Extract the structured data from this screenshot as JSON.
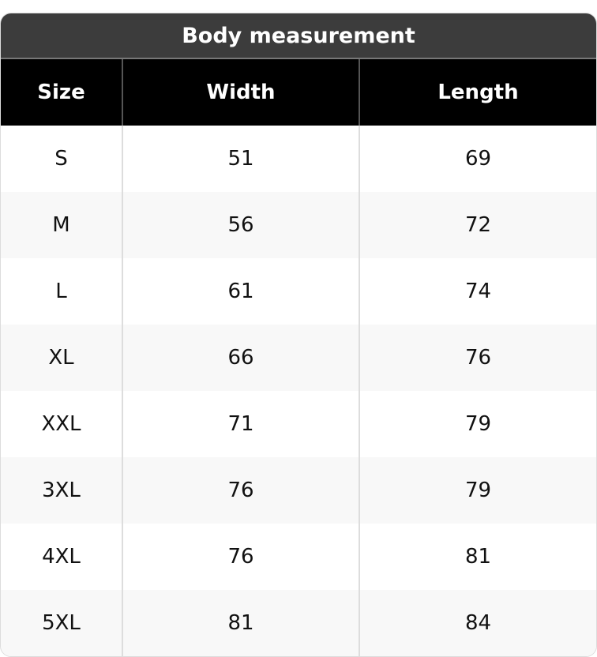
{
  "title": "Body measurement",
  "columns": [
    "Size",
    "Width",
    "Length"
  ],
  "rows": [
    [
      "S",
      "51",
      "69"
    ],
    [
      "M",
      "56",
      "72"
    ],
    [
      "L",
      "61",
      "74"
    ],
    [
      "XL",
      "66",
      "76"
    ],
    [
      "XXL",
      "71",
      "79"
    ],
    [
      "3XL",
      "76",
      "79"
    ],
    [
      "4XL",
      "76",
      "81"
    ],
    [
      "5XL",
      "81",
      "84"
    ]
  ]
}
